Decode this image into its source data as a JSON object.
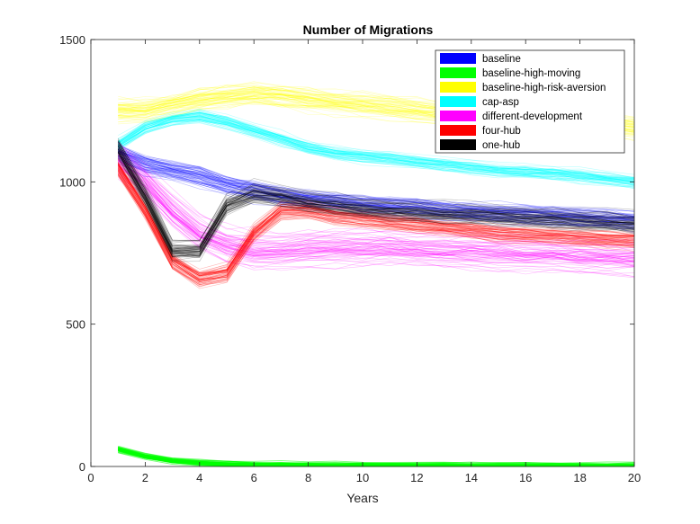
{
  "chart_data": {
    "type": "line",
    "title": "Number of Migrations",
    "xlabel": "Years",
    "ylabel": "",
    "xlim": [
      0,
      20
    ],
    "ylim": [
      0,
      1500
    ],
    "xticks": [
      0,
      2,
      4,
      6,
      8,
      10,
      12,
      14,
      16,
      18,
      20
    ],
    "yticks": [
      0,
      500,
      1000,
      1500
    ],
    "grid": false,
    "legend_location": "top-right",
    "runs_per_scenario": 60,
    "x": [
      1,
      2,
      3,
      4,
      5,
      6,
      7,
      8,
      9,
      10,
      11,
      12,
      13,
      14,
      15,
      16,
      17,
      18,
      19,
      20
    ],
    "series": [
      {
        "name": "baseline",
        "color": "#0000ff",
        "spread": 60,
        "mean": [
          1100,
          1060,
          1040,
          1020,
          990,
          970,
          950,
          940,
          930,
          920,
          915,
          910,
          900,
          895,
          890,
          885,
          880,
          875,
          870,
          865
        ]
      },
      {
        "name": "baseline-high-moving",
        "color": "#00ff00",
        "spread": 15,
        "mean": [
          60,
          35,
          20,
          12,
          8,
          6,
          5,
          4,
          4,
          3,
          3,
          3,
          3,
          2,
          2,
          2,
          2,
          2,
          2,
          2
        ]
      },
      {
        "name": "baseline-high-risk-aversion",
        "color": "#ffff00",
        "spread": 70,
        "mean": [
          1250,
          1250,
          1270,
          1290,
          1300,
          1310,
          1300,
          1290,
          1280,
          1270,
          1260,
          1250,
          1240,
          1240,
          1230,
          1220,
          1210,
          1210,
          1200,
          1190
        ]
      },
      {
        "name": "cap-asp",
        "color": "#00ffff",
        "spread": 40,
        "mean": [
          1130,
          1190,
          1220,
          1230,
          1210,
          1180,
          1150,
          1120,
          1100,
          1090,
          1080,
          1070,
          1060,
          1050,
          1040,
          1035,
          1030,
          1020,
          1010,
          1000
        ]
      },
      {
        "name": "different-development",
        "color": "#ff00ff",
        "spread": 80,
        "mean": [
          1080,
          1000,
          900,
          820,
          780,
          760,
          760,
          770,
          770,
          770,
          770,
          765,
          760,
          760,
          755,
          750,
          750,
          745,
          740,
          735
        ]
      },
      {
        "name": "four-hub",
        "color": "#ff0000",
        "spread": 50,
        "mean": [
          1050,
          900,
          720,
          660,
          680,
          820,
          900,
          900,
          880,
          870,
          860,
          850,
          840,
          830,
          820,
          815,
          810,
          805,
          800,
          795
        ]
      },
      {
        "name": "one-hub",
        "color": "#000000",
        "spread": 60,
        "mean": [
          1120,
          950,
          760,
          760,
          920,
          960,
          950,
          930,
          920,
          910,
          900,
          895,
          890,
          885,
          880,
          875,
          870,
          865,
          860,
          855
        ]
      }
    ]
  }
}
